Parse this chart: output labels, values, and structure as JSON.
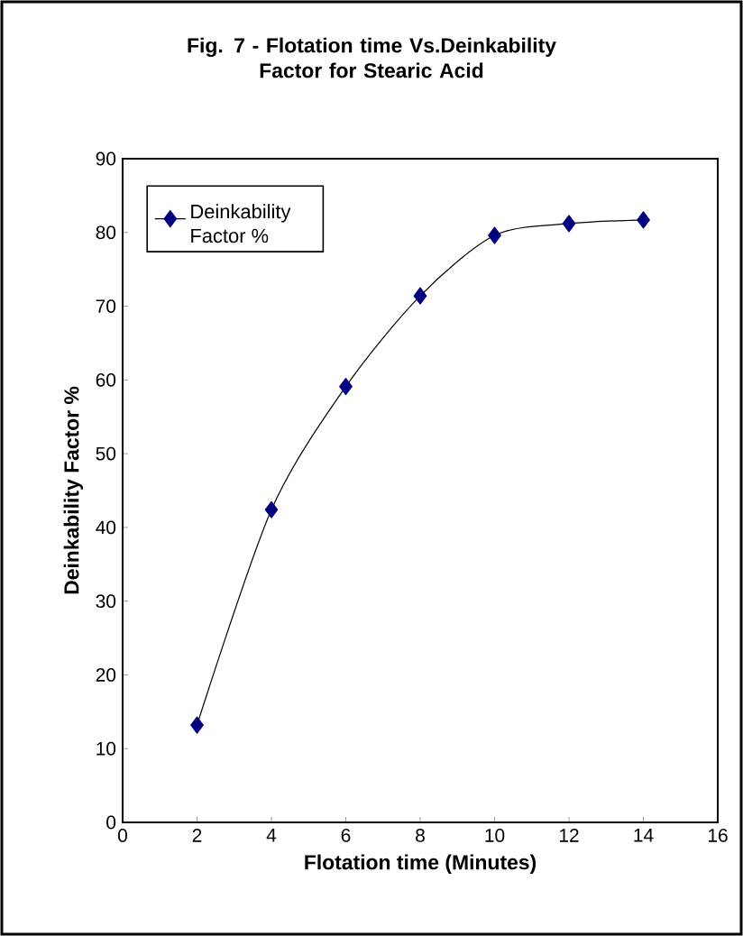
{
  "chart_data": {
    "type": "line",
    "title": "Fig. 7 - Flotation time  Vs.Deinkability Factor for Stearic Acid",
    "xlabel": "Flotation time (Minutes)",
    "ylabel": "Deinkability Factor %",
    "x": [
      2,
      4,
      6,
      8,
      10,
      12,
      14
    ],
    "series": [
      {
        "name": "Deinkability Factor %",
        "color": "#000080",
        "values": [
          13.2,
          42.4,
          59.1,
          71.4,
          79.6,
          81.2,
          81.7
        ]
      }
    ],
    "xlim": [
      0,
      16
    ],
    "ylim": [
      0,
      90
    ],
    "xticks": [
      0,
      2,
      4,
      6,
      8,
      10,
      12,
      14,
      16
    ],
    "yticks": [
      0,
      10,
      20,
      30,
      40,
      50,
      60,
      70,
      80,
      90
    ],
    "legend": "top left",
    "marker": "diamond",
    "line_style": "solid"
  }
}
